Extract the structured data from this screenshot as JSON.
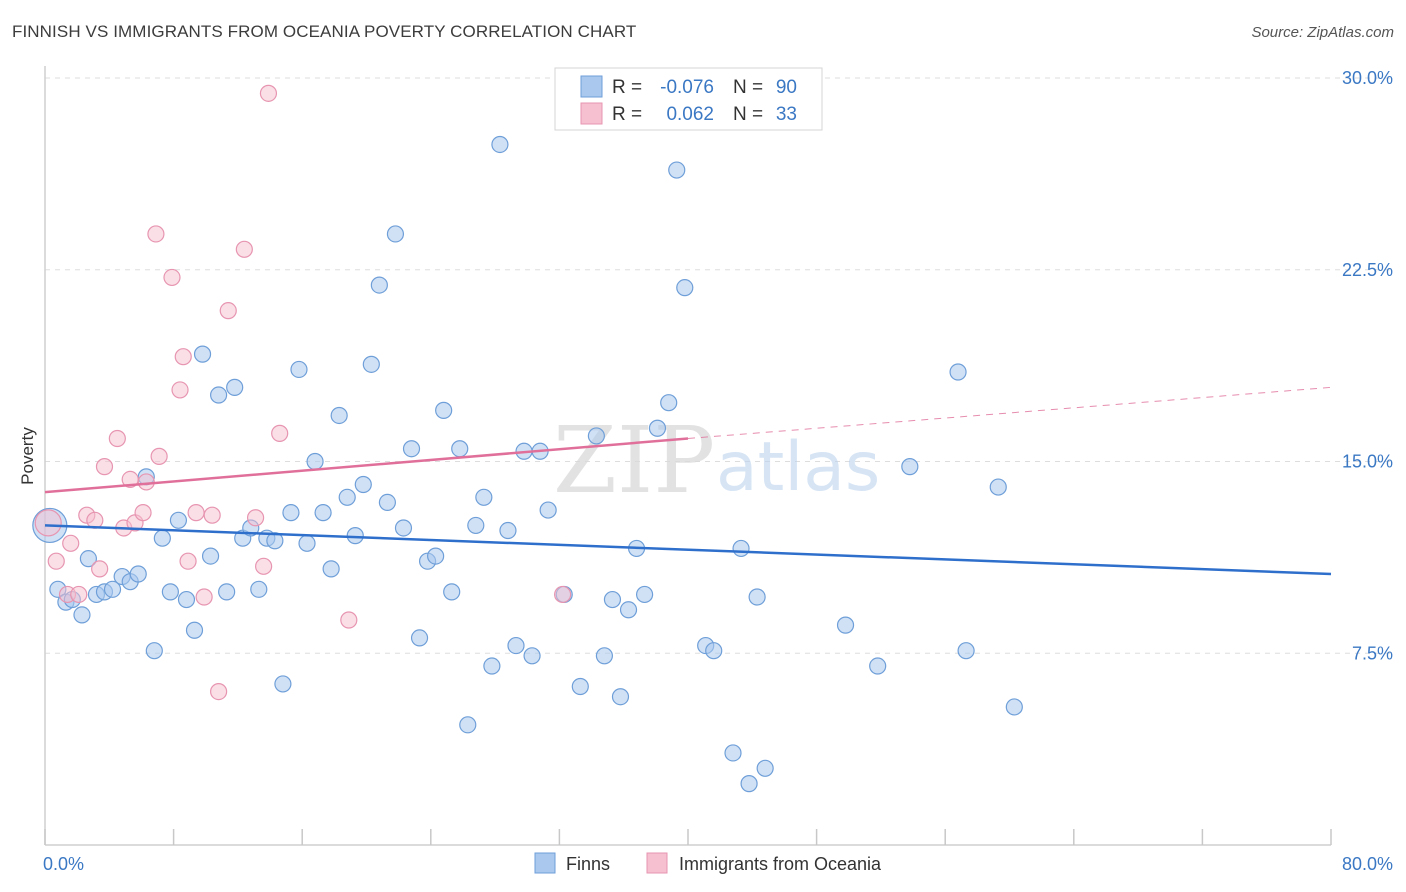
{
  "header": {
    "title": "FINNISH VS IMMIGRANTS FROM OCEANIA POVERTY CORRELATION CHART",
    "source": "Source: ZipAtlas.com"
  },
  "watermark": {
    "zip": "ZIP",
    "atlas": "atlas"
  },
  "legend": {
    "rows": [
      {
        "r_label": "R =",
        "r_value": "-0.076",
        "n_label": "N =",
        "n_value": "90"
      },
      {
        "r_label": "R =",
        "r_value": "0.062",
        "n_label": "N =",
        "n_value": "33"
      }
    ]
  },
  "bottom_legend": {
    "finns": "Finns",
    "oceania": "Immigrants from Oceania"
  },
  "colors": {
    "finns_fill": "#aac8ee",
    "finns_stroke": "#6f9fd8",
    "finns_line": "#2f6fcc",
    "oceania_fill": "#f6c0d0",
    "oceania_stroke": "#e795b0",
    "oceania_line": "#e0709a",
    "axis_label": "#3b78c4",
    "grid": "#dddddd"
  },
  "chart_data": {
    "type": "scatter",
    "title": "FINNISH VS IMMIGRANTS FROM OCEANIA POVERTY CORRELATION CHART",
    "xlabel": "",
    "ylabel": "Poverty",
    "xlim": [
      0,
      80
    ],
    "ylim": [
      0,
      30
    ],
    "x_tick_labels": [
      "0.0%",
      "80.0%"
    ],
    "y_ticks": [
      7.5,
      15.0,
      22.5,
      30.0
    ],
    "y_tick_labels": [
      "7.5%",
      "15.0%",
      "22.5%",
      "30.0%"
    ],
    "grid": true,
    "legend_position": "top-center",
    "series": [
      {
        "name": "Finns",
        "r": -0.076,
        "n": 90,
        "trend": {
          "x": [
            0,
            80
          ],
          "y": [
            12.5,
            10.6
          ]
        },
        "points": [
          [
            0.3,
            12.5
          ],
          [
            0.8,
            10.0
          ],
          [
            1.3,
            9.5
          ],
          [
            1.7,
            9.6
          ],
          [
            2.3,
            9.0
          ],
          [
            2.7,
            11.2
          ],
          [
            3.2,
            9.8
          ],
          [
            3.7,
            9.9
          ],
          [
            4.2,
            10.0
          ],
          [
            4.8,
            10.5
          ],
          [
            5.3,
            10.3
          ],
          [
            5.8,
            10.6
          ],
          [
            6.3,
            14.4
          ],
          [
            6.8,
            7.6
          ],
          [
            7.3,
            12.0
          ],
          [
            7.8,
            9.9
          ],
          [
            8.3,
            12.7
          ],
          [
            8.8,
            9.6
          ],
          [
            9.3,
            8.4
          ],
          [
            9.8,
            19.2
          ],
          [
            10.3,
            11.3
          ],
          [
            10.8,
            17.6
          ],
          [
            11.3,
            9.9
          ],
          [
            11.8,
            17.9
          ],
          [
            12.3,
            12.0
          ],
          [
            12.8,
            12.4
          ],
          [
            13.3,
            10.0
          ],
          [
            13.8,
            12.0
          ],
          [
            14.3,
            11.9
          ],
          [
            14.8,
            6.3
          ],
          [
            15.3,
            13.0
          ],
          [
            15.8,
            18.6
          ],
          [
            16.3,
            11.8
          ],
          [
            16.8,
            15.0
          ],
          [
            17.3,
            13.0
          ],
          [
            17.8,
            10.8
          ],
          [
            18.3,
            16.8
          ],
          [
            18.8,
            13.6
          ],
          [
            19.3,
            12.1
          ],
          [
            19.8,
            14.1
          ],
          [
            20.3,
            18.8
          ],
          [
            20.8,
            21.9
          ],
          [
            21.3,
            13.4
          ],
          [
            21.8,
            23.9
          ],
          [
            22.3,
            12.4
          ],
          [
            22.8,
            15.5
          ],
          [
            23.3,
            8.1
          ],
          [
            23.8,
            11.1
          ],
          [
            24.3,
            11.3
          ],
          [
            24.8,
            17.0
          ],
          [
            25.3,
            9.9
          ],
          [
            25.8,
            15.5
          ],
          [
            26.3,
            4.7
          ],
          [
            26.8,
            12.5
          ],
          [
            27.3,
            13.6
          ],
          [
            27.8,
            7.0
          ],
          [
            28.3,
            27.4
          ],
          [
            28.8,
            12.3
          ],
          [
            29.3,
            7.8
          ],
          [
            29.8,
            15.4
          ],
          [
            30.3,
            7.4
          ],
          [
            30.8,
            15.4
          ],
          [
            31.3,
            13.1
          ],
          [
            32.3,
            9.8
          ],
          [
            33.3,
            6.2
          ],
          [
            34.3,
            16.0
          ],
          [
            34.8,
            7.4
          ],
          [
            35.3,
            9.6
          ],
          [
            35.8,
            5.8
          ],
          [
            36.3,
            9.2
          ],
          [
            36.8,
            11.6
          ],
          [
            37.3,
            9.8
          ],
          [
            38.1,
            16.3
          ],
          [
            38.8,
            17.3
          ],
          [
            39.3,
            26.4
          ],
          [
            39.8,
            21.8
          ],
          [
            41.1,
            7.8
          ],
          [
            41.6,
            7.6
          ],
          [
            42.8,
            3.6
          ],
          [
            43.3,
            11.6
          ],
          [
            43.8,
            2.4
          ],
          [
            44.3,
            9.7
          ],
          [
            44.8,
            3.0
          ],
          [
            49.8,
            8.6
          ],
          [
            51.8,
            7.0
          ],
          [
            53.8,
            14.8
          ],
          [
            56.8,
            18.5
          ],
          [
            57.3,
            7.6
          ],
          [
            59.3,
            14.0
          ],
          [
            60.3,
            5.4
          ]
        ]
      },
      {
        "name": "Immigrants from Oceania",
        "r": 0.062,
        "n": 33,
        "trend": {
          "x": [
            0,
            40
          ],
          "y": [
            13.8,
            15.9
          ]
        },
        "trend_extension": {
          "x": [
            40,
            80
          ],
          "y": [
            15.9,
            17.9
          ]
        },
        "points": [
          [
            0.2,
            12.6
          ],
          [
            0.7,
            11.1
          ],
          [
            1.4,
            9.8
          ],
          [
            1.6,
            11.8
          ],
          [
            2.1,
            9.8
          ],
          [
            2.6,
            12.9
          ],
          [
            3.1,
            12.7
          ],
          [
            3.4,
            10.8
          ],
          [
            3.7,
            14.8
          ],
          [
            4.5,
            15.9
          ],
          [
            4.9,
            12.4
          ],
          [
            5.3,
            14.3
          ],
          [
            5.6,
            12.6
          ],
          [
            6.1,
            13.0
          ],
          [
            6.3,
            14.2
          ],
          [
            6.9,
            23.9
          ],
          [
            7.1,
            15.2
          ],
          [
            7.9,
            22.2
          ],
          [
            8.4,
            17.8
          ],
          [
            8.6,
            19.1
          ],
          [
            8.9,
            11.1
          ],
          [
            9.4,
            13.0
          ],
          [
            9.9,
            9.7
          ],
          [
            10.4,
            12.9
          ],
          [
            10.8,
            6.0
          ],
          [
            11.4,
            20.9
          ],
          [
            12.4,
            23.3
          ],
          [
            13.1,
            12.8
          ],
          [
            13.6,
            10.9
          ],
          [
            13.9,
            29.4
          ],
          [
            14.6,
            16.1
          ],
          [
            18.9,
            8.8
          ],
          [
            32.2,
            9.8
          ]
        ]
      }
    ]
  }
}
